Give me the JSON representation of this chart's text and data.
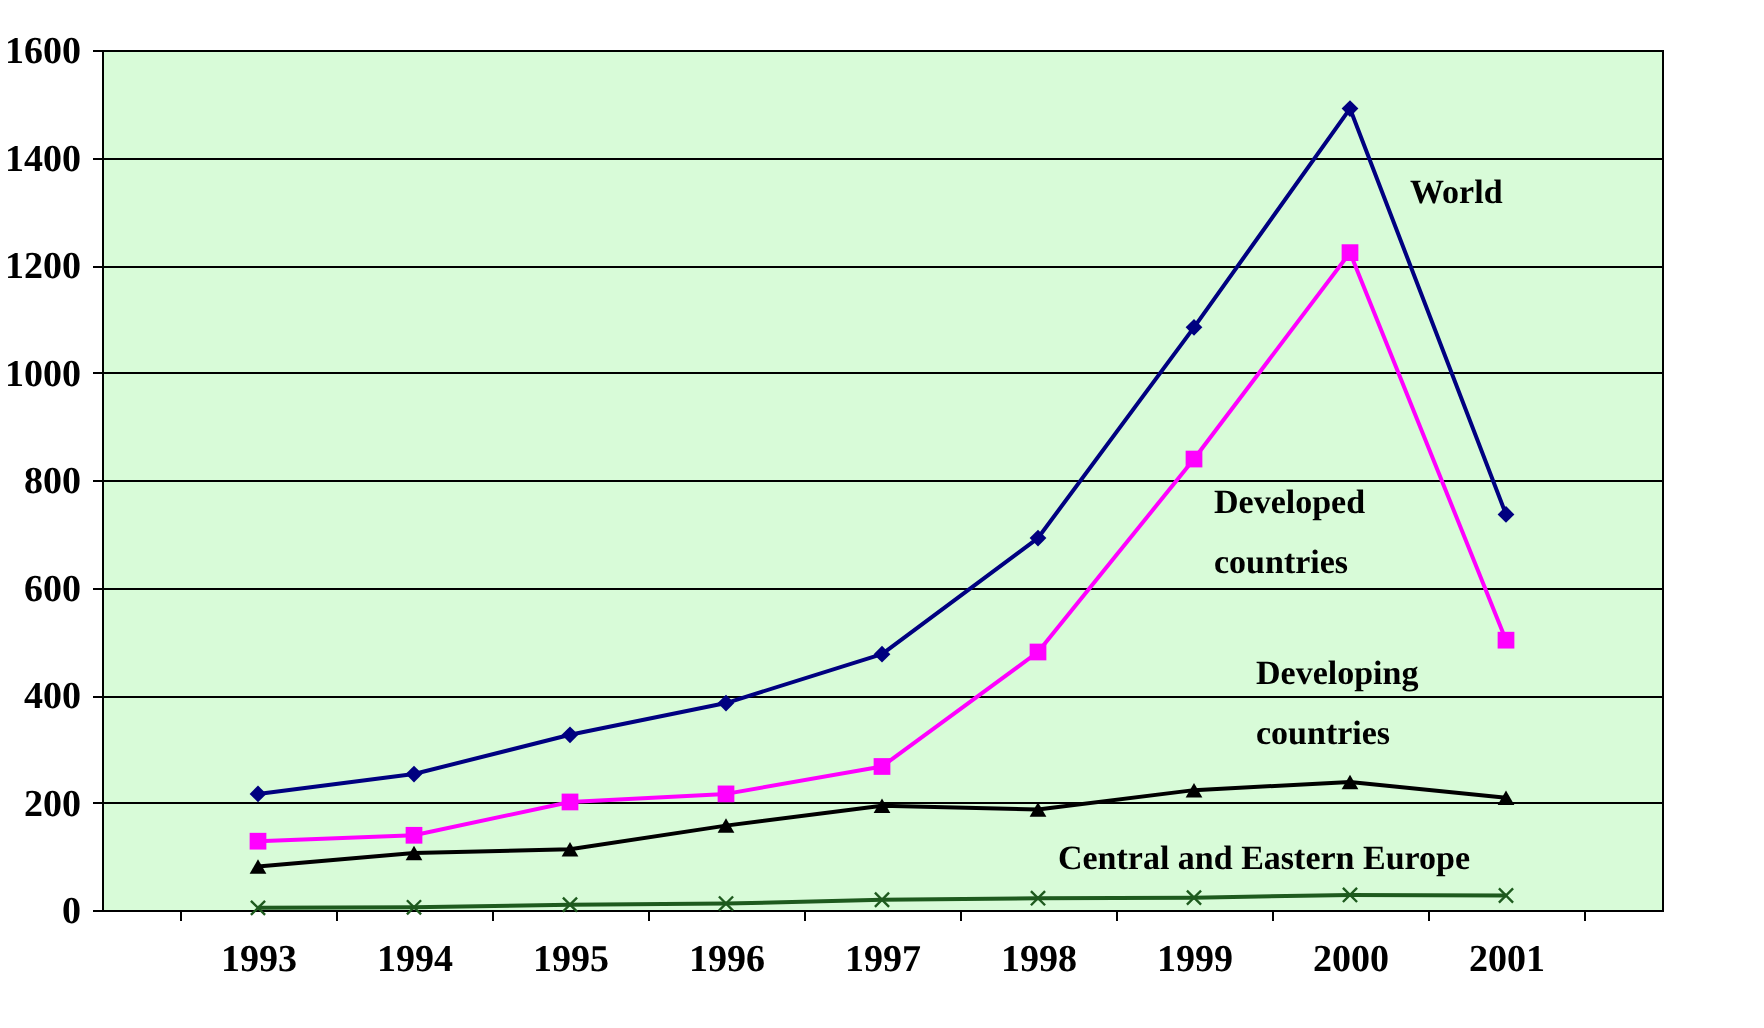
{
  "chart_data": {
    "type": "line",
    "categories": [
      "1993",
      "1994",
      "1995",
      "1996",
      "1997",
      "1998",
      "1999",
      "2000",
      "2001"
    ],
    "ylim": [
      0,
      1600
    ],
    "yticks": [
      0,
      200,
      400,
      600,
      800,
      1000,
      1200,
      1400,
      1600
    ],
    "grid": "y",
    "series": [
      {
        "name": "World",
        "color": "#000080",
        "marker": "diamond",
        "values": [
          216,
          253,
          326,
          385,
          476,
          692,
          1084,
          1491,
          736
        ]
      },
      {
        "name": "Developed countries",
        "color": "#ff00ff",
        "marker": "square",
        "values": [
          128,
          139,
          201,
          216,
          267,
          480,
          839,
          1223,
          502
        ]
      },
      {
        "name": "Developing countries",
        "color": "#000000",
        "marker": "triangle",
        "values": [
          81,
          106,
          113,
          157,
          194,
          187,
          223,
          238,
          209
        ]
      },
      {
        "name": "Central and Eastern Europe",
        "color": "#1e5a1e",
        "marker": "cross",
        "values": [
          4,
          5,
          10,
          12,
          19,
          22,
          23,
          28,
          27
        ]
      }
    ]
  }
}
